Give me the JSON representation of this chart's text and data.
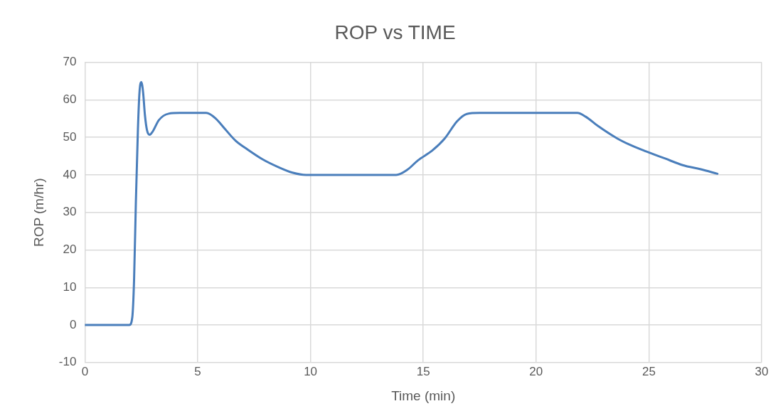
{
  "chart_data": {
    "type": "line",
    "title": "ROP vs TIME",
    "xlabel": "Time (min)",
    "ylabel": "ROP (m/hr)",
    "xlim": [
      0,
      30
    ],
    "xticks": [
      0,
      5,
      10,
      15,
      20,
      25,
      30
    ],
    "ylim": [
      -10,
      70
    ],
    "yticks": [
      -10,
      0,
      10,
      20,
      30,
      40,
      50,
      60,
      70
    ],
    "grid": true,
    "marker": "none",
    "line_style": "solid",
    "series": [
      {
        "color": "#4a7ebb",
        "x": [
          0,
          1,
          1.97,
          2.1,
          2.18,
          2.26,
          2.35,
          2.42,
          2.5,
          2.58,
          2.66,
          2.75,
          2.87,
          3.0,
          3.28,
          3.71,
          4.2,
          5.0,
          5.38,
          5.82,
          6.2,
          6.68,
          7.2,
          7.86,
          8.6,
          9.2,
          9.8,
          11,
          12,
          13,
          13.8,
          14.3,
          14.77,
          15.4,
          15.95,
          16.5,
          16.93,
          17.5,
          18.5,
          20,
          21,
          21.83,
          22.2,
          22.75,
          23.6,
          24.2,
          24.9,
          25.7,
          26.5,
          27.3,
          28.04
        ],
        "values": [
          0,
          0,
          0,
          2,
          12,
          32.8,
          52,
          62,
          64.7,
          62,
          56,
          52,
          50.7,
          51.5,
          54.6,
          56.3,
          56.5,
          56.5,
          56.5,
          54.9,
          52.3,
          49.1,
          46.8,
          44.2,
          42,
          40.6,
          40,
          40,
          40,
          40,
          40,
          41.4,
          43.9,
          46.5,
          49.7,
          54.3,
          56.25,
          56.5,
          56.5,
          56.5,
          56.5,
          56.5,
          55.5,
          53,
          49.7,
          47.9,
          46.2,
          44.4,
          42.6,
          41.5,
          40.3
        ]
      }
    ]
  }
}
